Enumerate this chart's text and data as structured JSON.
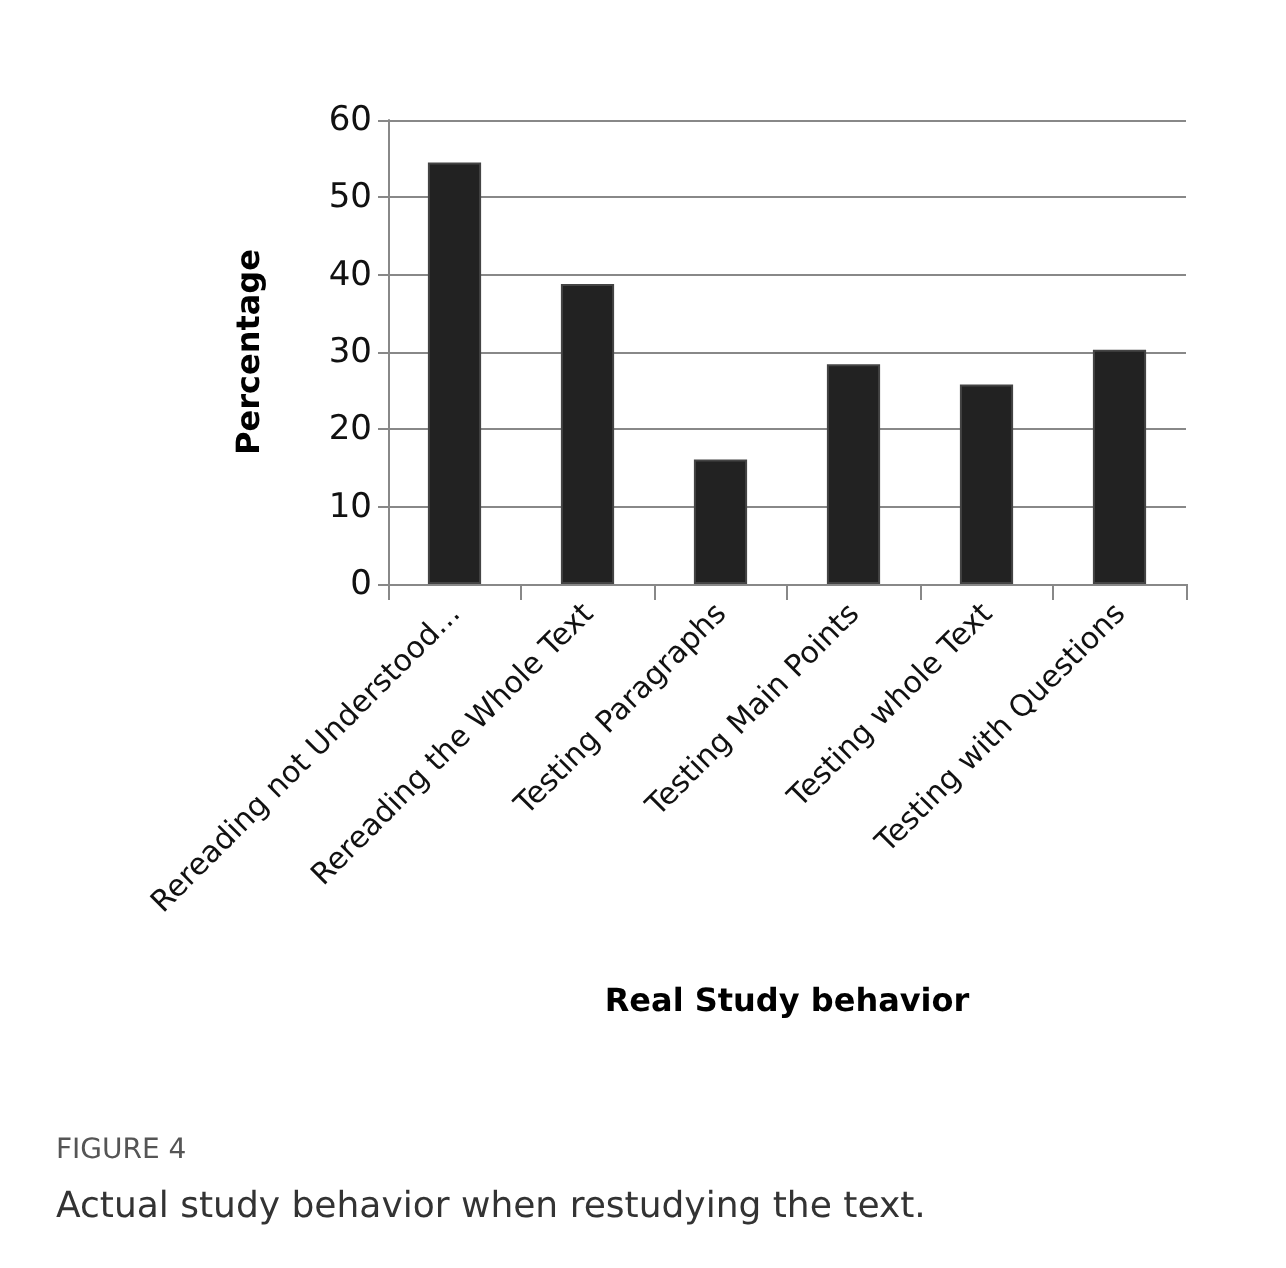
{
  "chart_data": {
    "type": "bar",
    "xlabel": "Real Study behavior",
    "ylabel": "Percentage",
    "categories": [
      "Rereading not Understood...",
      "Rereading the Whole Text",
      "Testing Paragraphs",
      "Testing Main Points",
      "Testing whole Text",
      "Testing with Questions"
    ],
    "values": [
      54.5,
      38.8,
      16.1,
      28.4,
      25.8,
      30.3
    ],
    "color": "#222222",
    "ylim": [
      0,
      60
    ],
    "yticks": [
      0,
      10,
      20,
      30,
      40,
      50,
      60
    ],
    "grid": "y",
    "annotations": [
      "FIGURE 4",
      "Actual study behavior when restudying the text."
    ]
  }
}
